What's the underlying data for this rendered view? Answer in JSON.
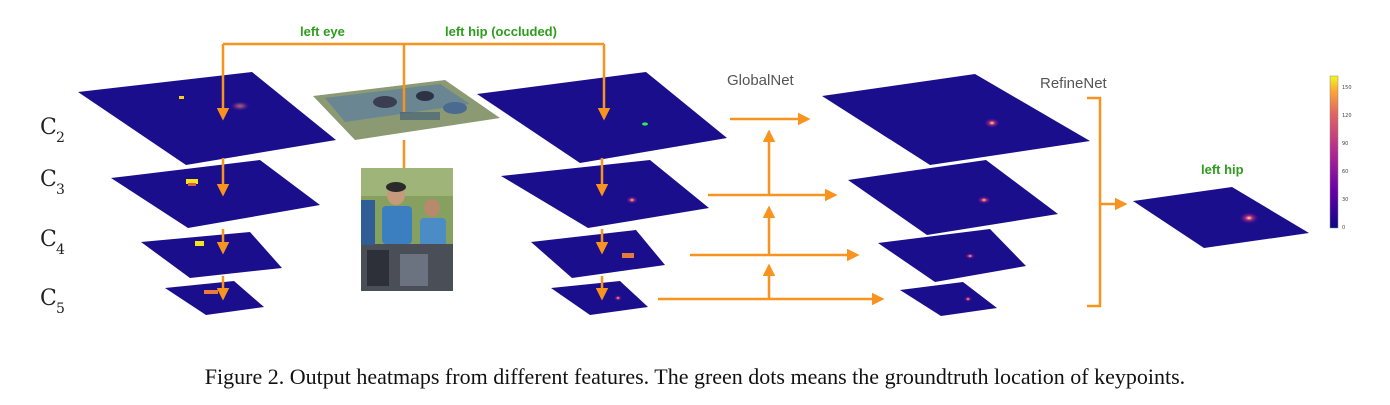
{
  "labels": {
    "left_eye": "left eye",
    "left_hip_occluded": "left hip (occluded)",
    "globalnet": "GlobalNet",
    "refinenet": "RefineNet",
    "left_hip": "left hip",
    "c_base": "C",
    "c2": "2",
    "c3": "3",
    "c4": "4",
    "c5": "5"
  },
  "colorbar": {
    "ticks": [
      "150",
      "120",
      "90",
      "60",
      "30",
      "0"
    ]
  },
  "colors": {
    "arrow": "#f7931e",
    "heatmap_base": "#1a0e8a",
    "highlight": "#f5e61c",
    "groundtruth": "#2ee85a"
  },
  "caption": "Figure 2. Output heatmaps from different features. The green dots means the groundtruth location of keypoints."
}
